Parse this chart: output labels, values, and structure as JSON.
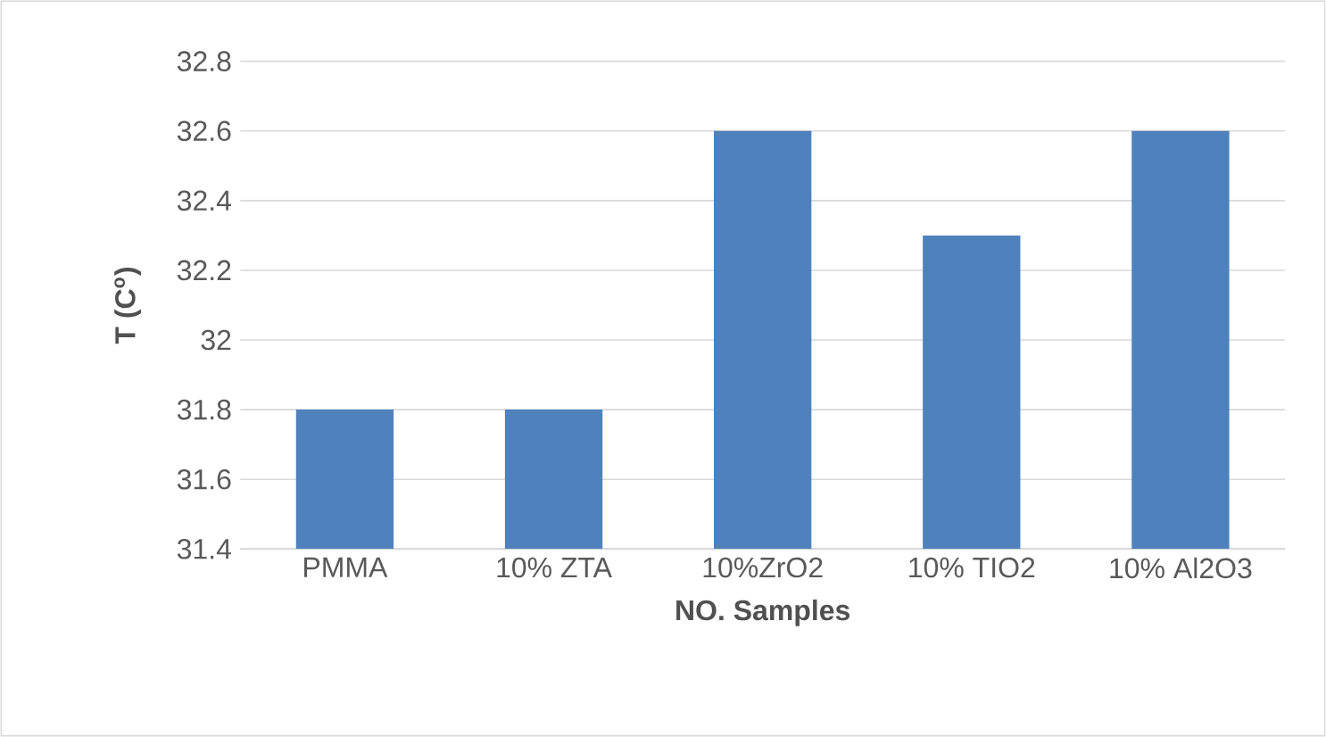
{
  "chart_data": {
    "type": "bar",
    "categories": [
      "PMMA",
      "10% ZTA",
      "10%ZrO2",
      "10% TIO2",
      "10% Al2O3"
    ],
    "values": [
      31.8,
      31.8,
      32.6,
      32.3,
      32.6
    ],
    "color": "#4f81bd",
    "xlabel": "NO. Samples",
    "ylabel": "T (C$^{o}$)",
    "ylim": [
      31.4,
      32.8
    ],
    "yticks": [
      31.4,
      31.6,
      31.8,
      32,
      32.2,
      32.4,
      32.6,
      32.8
    ],
    "grid": "y"
  }
}
